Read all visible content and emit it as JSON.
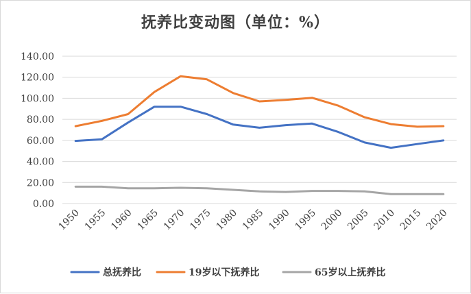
{
  "chart_data": {
    "type": "line",
    "title": "抚养比变动图（单位：%）",
    "xlabel": "",
    "ylabel": "",
    "x": [
      "1950",
      "1955",
      "1960",
      "1965",
      "1970",
      "1975",
      "1980",
      "1985",
      "1990",
      "1995",
      "2000",
      "2005",
      "2010",
      "2015",
      "2020"
    ],
    "ylim": [
      0,
      140
    ],
    "yticks": [
      "0.00",
      "20.00",
      "40.00",
      "60.00",
      "80.00",
      "100.00",
      "120.00",
      "140.00"
    ],
    "grid": "horizontal",
    "legend_position": "bottom",
    "series": [
      {
        "name": "总抚养比",
        "color": "#4472C4",
        "values": [
          59.5,
          61,
          77,
          92,
          92,
          85,
          75,
          72,
          74.5,
          76,
          68,
          58,
          53,
          56.5,
          60
        ]
      },
      {
        "name": "19岁以下抚养比",
        "color": "#ED7D31",
        "values": [
          73.5,
          78.5,
          85,
          106,
          121,
          118,
          105,
          97,
          98.5,
          100.5,
          93,
          82,
          75.5,
          73,
          73.5
        ]
      },
      {
        "name": "65岁以上抚养比",
        "color": "#A5A5A5",
        "values": [
          16,
          16,
          14.5,
          14.5,
          15,
          14.5,
          13,
          11.5,
          11,
          12,
          12,
          11.5,
          9,
          9,
          9
        ]
      }
    ]
  }
}
